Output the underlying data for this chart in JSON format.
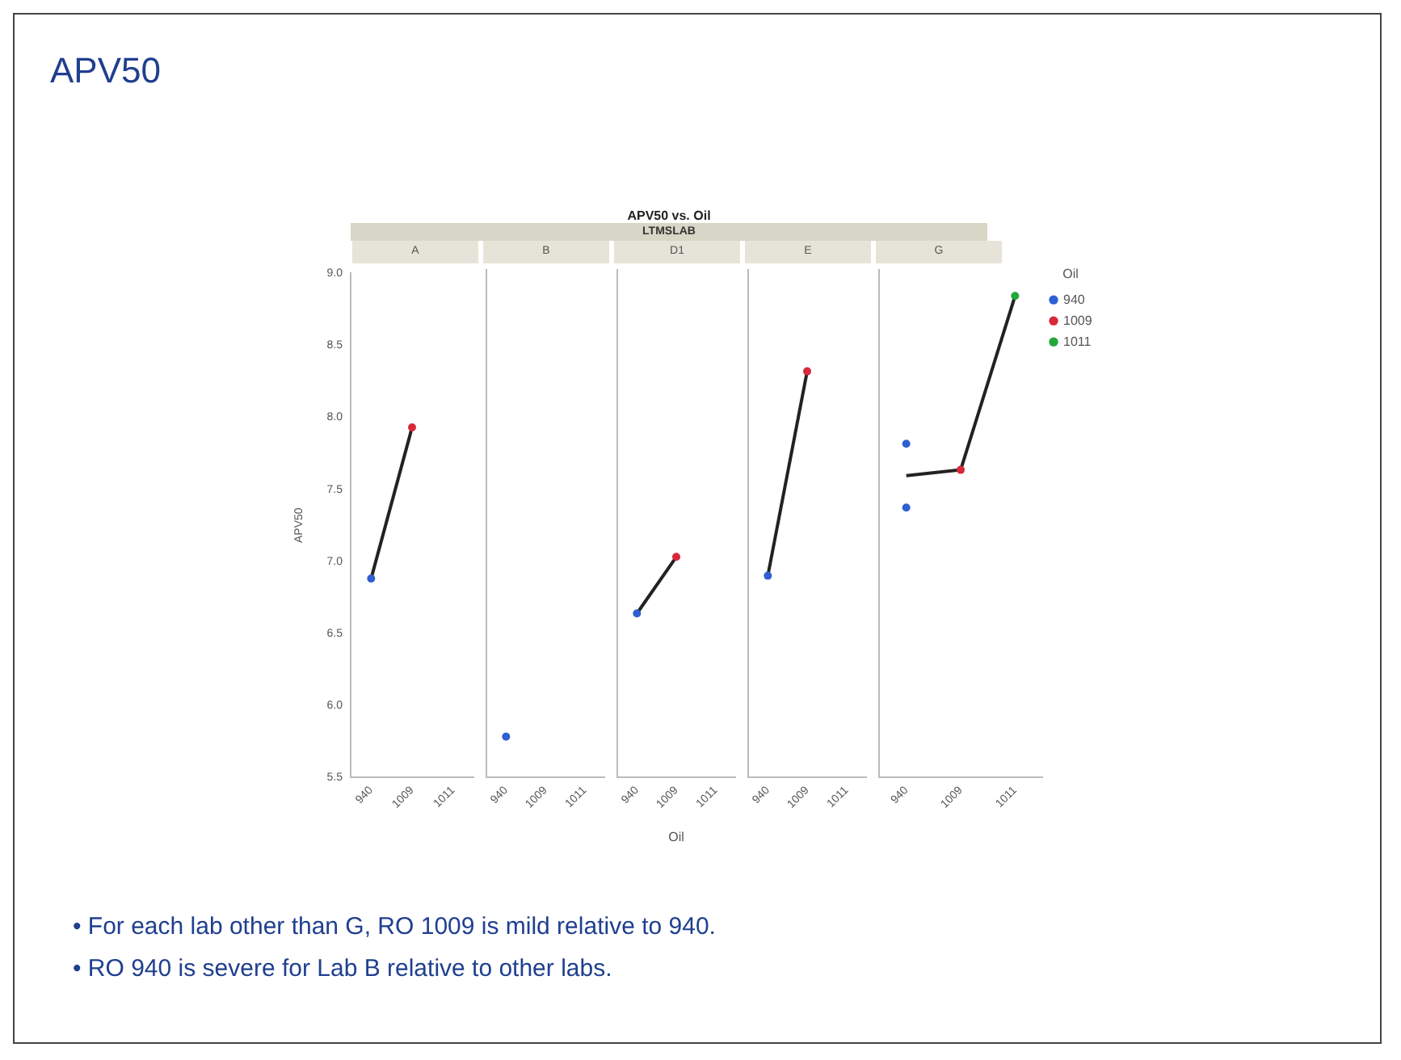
{
  "chart_data": [
    {
      "type": "other",
      "title": "APV50",
      "subtitle": "APV50 vs. Oil",
      "annotations": [
        "LTMSLAB",
        "• For each lab other than G, RO 1009 is mild relative to 940.",
        "• RO 940 is severe for Lab B relative to other labs."
      ]
    },
    {
      "type": "scatter",
      "title": "A",
      "ylabel": "APV50",
      "categories": [
        "940",
        "1009",
        "1011"
      ],
      "ylim": [
        5.5,
        9
      ],
      "yticks": [
        5.5,
        {
          "value": 6,
          "label": "6.0"
        },
        6.5,
        {
          "value": 7,
          "label": "7.0"
        },
        7.5,
        {
          "value": 8,
          "label": "8.0"
        },
        8.5,
        {
          "value": 9,
          "label": "9.0"
        }
      ],
      "marker": "circle",
      "series": [
        {
          "type": "scatter",
          "color": "#2f5fd0",
          "values": [
            6.88,
            null,
            null
          ]
        },
        {
          "type": "scatter",
          "color": "#d8283a",
          "values": [
            null,
            7.93,
            null
          ]
        },
        {
          "type": "line",
          "color": "#222222",
          "values": [
            6.88,
            7.93,
            null
          ],
          "marker": "none"
        }
      ]
    },
    {
      "type": "scatter",
      "title": "B",
      "categories": [
        "940",
        "1009",
        "1011"
      ],
      "ylim": [
        5.5,
        9
      ],
      "yticks": [
        5.5,
        6,
        6.5,
        7,
        7.5,
        8,
        8.5,
        9
      ],
      "tick_labels": "x",
      "marker": "circle",
      "series": [
        {
          "type": "scatter",
          "color": "#2f5fd0",
          "values": [
            5.78,
            null,
            null
          ]
        }
      ]
    },
    {
      "type": "scatter",
      "title": "D1",
      "xlabel": "Oil",
      "categories": [
        "940",
        "1009",
        "1011"
      ],
      "ylim": [
        5.5,
        9
      ],
      "yticks": [
        5.5,
        6,
        6.5,
        7,
        7.5,
        8,
        8.5,
        9
      ],
      "tick_labels": "x",
      "marker": "circle",
      "series": [
        {
          "type": "scatter",
          "color": "#2f5fd0",
          "values": [
            6.63,
            null,
            null
          ]
        },
        {
          "type": "scatter",
          "color": "#d8283a",
          "values": [
            null,
            7.02,
            null
          ]
        },
        {
          "type": "line",
          "color": "#222222",
          "values": [
            6.63,
            7.02,
            null
          ],
          "marker": "none"
        }
      ]
    },
    {
      "type": "scatter",
      "title": "E",
      "categories": [
        "940",
        "1009",
        "1011"
      ],
      "ylim": [
        5.5,
        9
      ],
      "yticks": [
        5.5,
        6,
        6.5,
        7,
        7.5,
        8,
        8.5,
        9
      ],
      "tick_labels": "x",
      "marker": "circle",
      "series": [
        {
          "type": "scatter",
          "color": "#2f5fd0",
          "values": [
            6.89,
            null,
            null
          ]
        },
        {
          "type": "scatter",
          "color": "#d8283a",
          "values": [
            null,
            8.3,
            null
          ]
        },
        {
          "type": "line",
          "color": "#222222",
          "values": [
            6.89,
            8.3,
            null
          ],
          "marker": "none"
        }
      ]
    },
    {
      "type": "scatter",
      "title": "G",
      "categories": [
        "940",
        "1009",
        "1011"
      ],
      "ylim": [
        5.5,
        9
      ],
      "yticks": [
        5.5,
        6,
        6.5,
        7,
        7.5,
        8,
        8.5,
        9
      ],
      "tick_labels": "x",
      "marker": "circle",
      "legend": "right",
      "legend_title": "Oil",
      "series": [
        {
          "type": "scatter",
          "name": "940",
          "color": "#2f5fd0",
          "values": [
            7.8,
            null,
            null
          ]
        },
        {
          "type": "scatter",
          "color": "#2f5fd0",
          "values": [
            7.36,
            null,
            null
          ]
        },
        {
          "type": "scatter",
          "name": "1009",
          "color": "#d8283a",
          "values": [
            null,
            7.62,
            null
          ]
        },
        {
          "type": "scatter",
          "name": "1011",
          "color": "#22a83a",
          "values": [
            null,
            null,
            8.82
          ]
        },
        {
          "type": "line",
          "color": "#222222",
          "values": [
            7.58,
            7.62,
            8.82
          ],
          "marker": "none"
        }
      ]
    }
  ]
}
